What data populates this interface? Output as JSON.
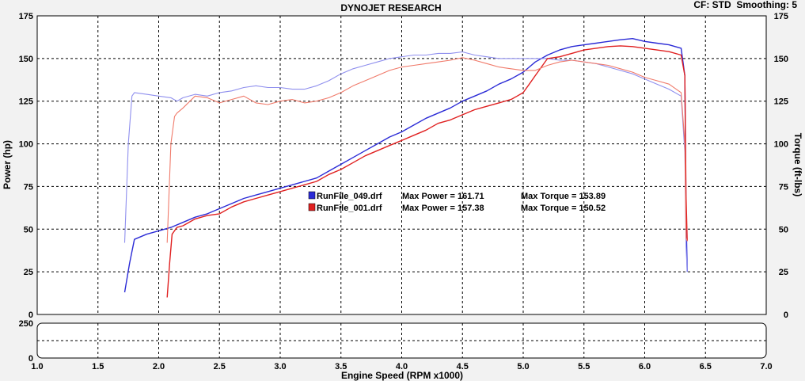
{
  "header": {
    "title": "DYNOJET RESEARCH",
    "settings": "CF: STD  Smoothing: 5"
  },
  "chart_data": {
    "type": "line",
    "title": "DYNOJET RESEARCH",
    "xlabel": "Engine Speed (RPM x1000)",
    "ylabel_left": "Power (hp)",
    "ylabel_right": "Torque (ft-lbs)",
    "xlim": [
      1.0,
      7.0
    ],
    "ylim_left": [
      0,
      175
    ],
    "ylim_right": [
      0,
      175
    ],
    "x_ticks": [
      "1.0",
      "1.5",
      "2.0",
      "2.5",
      "3.0",
      "3.5",
      "4.0",
      "4.5",
      "5.0",
      "5.5",
      "6.0",
      "6.5",
      "7.0"
    ],
    "y_ticks": [
      "0",
      "25",
      "50",
      "75",
      "100",
      "125",
      "150",
      "175"
    ],
    "lower_panel": {
      "ylim": [
        0,
        250
      ],
      "y_ticks": [
        "0",
        "250"
      ]
    },
    "grid": true,
    "legend_position": "center",
    "legend": [
      {
        "file": "RunFile_049.drf",
        "max_power_label": "Max Power = 161.71",
        "max_torque_label": "Max Torque = 153.89",
        "color": "#2b2bd6"
      },
      {
        "file": "RunFile_001.drf",
        "max_power_label": "Max Power = 157.38",
        "max_torque_label": "Max Torque = 150.52",
        "color": "#e02020"
      }
    ],
    "series": [
      {
        "name": "RunFile_049.drf",
        "quantity": "power",
        "color": "#2b2bd6",
        "x": [
          1.72,
          1.76,
          1.8,
          1.9,
          2.0,
          2.1,
          2.2,
          2.3,
          2.4,
          2.5,
          2.6,
          2.7,
          2.8,
          2.9,
          3.0,
          3.1,
          3.2,
          3.3,
          3.4,
          3.5,
          3.6,
          3.7,
          3.8,
          3.9,
          4.0,
          4.1,
          4.2,
          4.3,
          4.4,
          4.5,
          4.6,
          4.7,
          4.8,
          4.9,
          5.0,
          5.05,
          5.1,
          5.15,
          5.2,
          5.3,
          5.4,
          5.5,
          5.6,
          5.7,
          5.8,
          5.9,
          6.0,
          6.1,
          6.2,
          6.3,
          6.33,
          6.34,
          6.35
        ],
        "y": [
          13,
          30,
          44,
          47,
          49,
          51,
          54,
          57,
          59,
          62,
          65,
          68,
          70,
          72,
          74,
          76,
          78,
          80,
          84,
          88,
          92,
          96,
          100,
          104,
          107,
          111,
          115,
          118,
          121,
          125,
          128,
          131,
          135,
          138,
          142,
          145,
          148,
          150,
          152,
          155,
          157,
          158,
          159,
          160,
          161,
          161.7,
          160,
          159,
          158,
          156,
          140,
          60,
          25
        ]
      },
      {
        "name": "RunFile_049.drf",
        "quantity": "torque",
        "color": "#8f8fee",
        "x": [
          1.72,
          1.75,
          1.78,
          1.8,
          1.9,
          2.0,
          2.1,
          2.15,
          2.2,
          2.3,
          2.4,
          2.5,
          2.6,
          2.7,
          2.8,
          2.9,
          3.0,
          3.1,
          3.2,
          3.3,
          3.4,
          3.5,
          3.6,
          3.7,
          3.8,
          3.9,
          4.0,
          4.1,
          4.2,
          4.3,
          4.4,
          4.5,
          4.6,
          4.7,
          4.8,
          4.9,
          5.0,
          5.1,
          5.2,
          5.3,
          5.4,
          5.5,
          5.6,
          5.7,
          5.8,
          5.9,
          6.0,
          6.1,
          6.2,
          6.3,
          6.33,
          6.34,
          6.35
        ],
        "y": [
          42,
          100,
          128,
          130,
          129,
          128,
          127,
          125,
          127,
          129,
          128,
          130,
          131,
          133,
          134,
          133,
          133,
          132,
          132,
          134,
          137,
          141,
          144,
          146,
          148,
          150,
          151,
          152,
          152,
          153,
          153,
          153.9,
          152,
          151,
          150,
          150,
          150,
          150,
          150,
          149,
          149,
          148,
          147,
          145,
          143,
          141,
          138,
          135,
          132,
          128,
          95,
          40,
          25
        ]
      },
      {
        "name": "RunFile_001.drf",
        "quantity": "power",
        "color": "#e02020",
        "x": [
          2.07,
          2.09,
          2.11,
          2.15,
          2.2,
          2.3,
          2.4,
          2.5,
          2.6,
          2.7,
          2.8,
          2.9,
          3.0,
          3.1,
          3.2,
          3.3,
          3.4,
          3.5,
          3.6,
          3.7,
          3.8,
          3.9,
          4.0,
          4.1,
          4.2,
          4.3,
          4.4,
          4.5,
          4.6,
          4.7,
          4.8,
          4.9,
          4.95,
          5.0,
          5.05,
          5.1,
          5.15,
          5.2,
          5.3,
          5.4,
          5.5,
          5.6,
          5.7,
          5.8,
          5.9,
          6.0,
          6.1,
          6.2,
          6.3,
          6.33,
          6.34,
          6.35
        ],
        "y": [
          10,
          30,
          47,
          51,
          52,
          56,
          58,
          59,
          63,
          66,
          68,
          70,
          72,
          74,
          76,
          78,
          82,
          85,
          89,
          93,
          96,
          99,
          102,
          105,
          108,
          112,
          114,
          117,
          120,
          122,
          124,
          126,
          128,
          130,
          135,
          140,
          145,
          150,
          151,
          153,
          155,
          156,
          157,
          157.4,
          157,
          156,
          155,
          154,
          152,
          140,
          70,
          43
        ]
      },
      {
        "name": "RunFile_001.drf",
        "quantity": "torque",
        "color": "#f07a6a",
        "x": [
          2.07,
          2.1,
          2.13,
          2.15,
          2.2,
          2.3,
          2.4,
          2.5,
          2.6,
          2.7,
          2.8,
          2.9,
          3.0,
          3.1,
          3.2,
          3.3,
          3.4,
          3.5,
          3.6,
          3.7,
          3.8,
          3.9,
          4.0,
          4.1,
          4.2,
          4.3,
          4.4,
          4.5,
          4.6,
          4.7,
          4.8,
          4.9,
          5.0,
          5.1,
          5.2,
          5.3,
          5.4,
          5.5,
          5.6,
          5.7,
          5.8,
          5.9,
          6.0,
          6.1,
          6.2,
          6.3,
          6.33,
          6.34,
          6.35
        ],
        "y": [
          42,
          100,
          116,
          118,
          121,
          128,
          127,
          124,
          126,
          128,
          124,
          123,
          125,
          126,
          124,
          125,
          127,
          130,
          134,
          137,
          140,
          143,
          145,
          146,
          147,
          148,
          149,
          150.5,
          149,
          147,
          145,
          144,
          143,
          143,
          146,
          148,
          149,
          148,
          147,
          146,
          144,
          142,
          139,
          137,
          135,
          130,
          100,
          45,
          43
        ]
      }
    ]
  }
}
